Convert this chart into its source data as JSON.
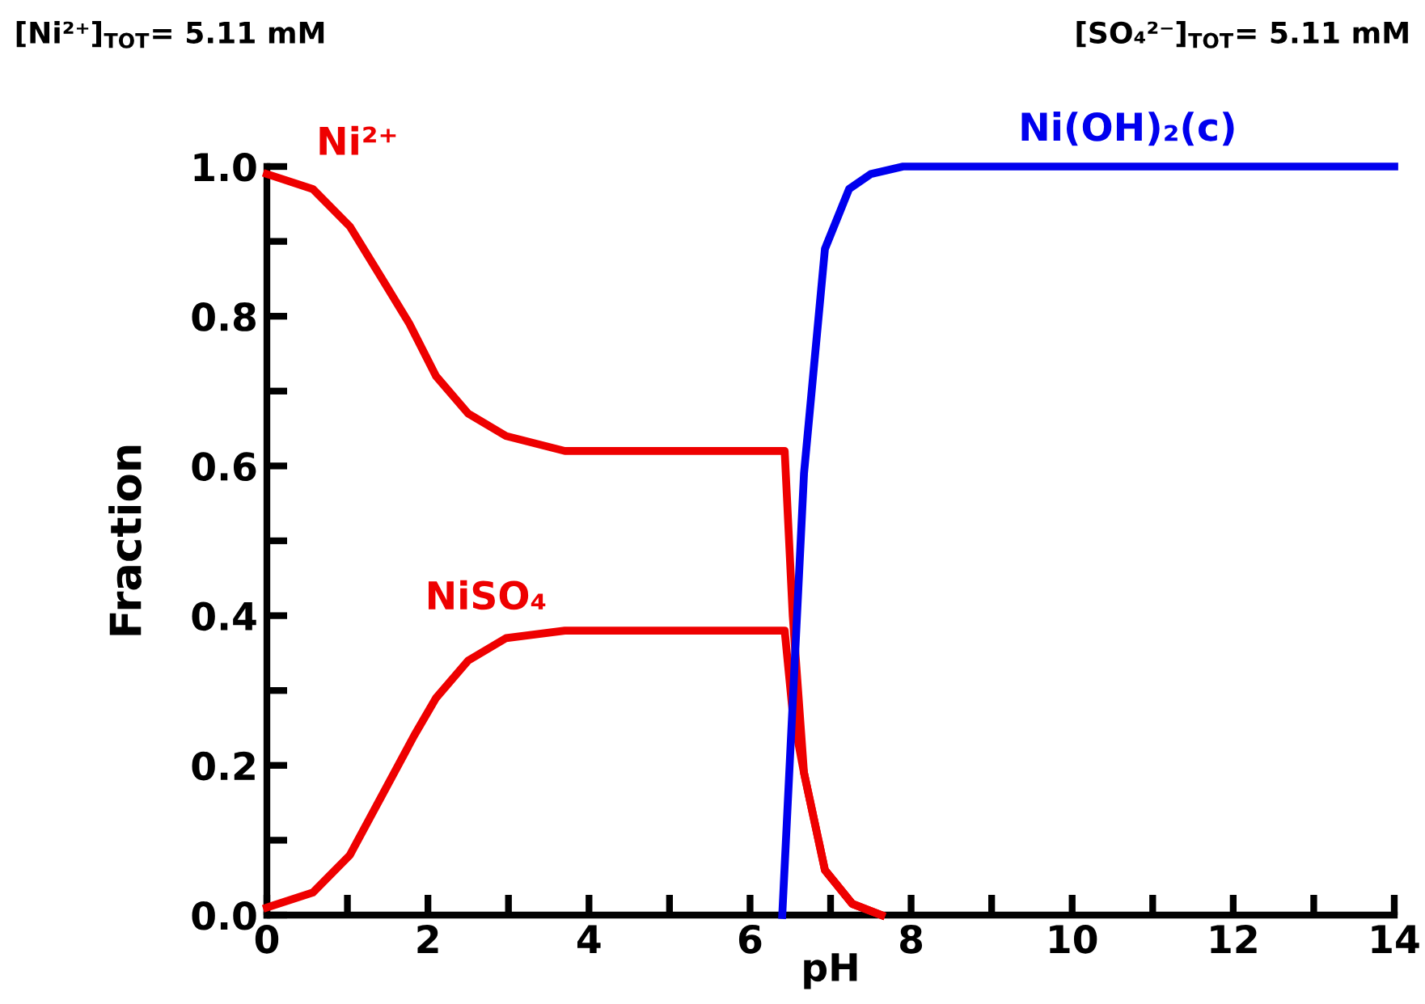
{
  "chart_data": {
    "type": "line",
    "xlabel": "pH",
    "ylabel": "Fraction",
    "annotations": [
      "[Ni²⁺]$_{TOT}$= 5.11 mM",
      "[SO₄²⁻]$_{TOT}$= 5.11 mM"
    ],
    "series": [
      {
        "name": "Ni²⁺",
        "color": "#ee0000",
        "x": [
          0,
          0.57,
          1.03,
          1.43,
          1.77,
          2.1,
          2.5,
          2.97,
          3.7,
          6.37,
          6.43,
          6.53,
          6.67,
          6.93,
          7.27,
          7.63
        ],
        "values": [
          0.99,
          0.97,
          0.92,
          0.85,
          0.79,
          0.72,
          0.67,
          0.64,
          0.62,
          0.62,
          0.62,
          0.4,
          0.19,
          0.06,
          0.015,
          0
        ]
      },
      {
        "name": "NiSO₄",
        "color": "#ee0000",
        "x": [
          0,
          0.57,
          1.03,
          1.43,
          1.83,
          2.1,
          2.5,
          2.97,
          3.7,
          6.37,
          6.43,
          6.53,
          6.67,
          6.93,
          7.27,
          7.63
        ],
        "values": [
          0.01,
          0.03,
          0.08,
          0.16,
          0.24,
          0.29,
          0.34,
          0.37,
          0.38,
          0.38,
          0.38,
          0.27,
          0.19,
          0.06,
          0.015,
          0
        ]
      },
      {
        "name": "Ni(OH)₂(c)",
        "color": "#0000ee",
        "x": [
          6.4,
          6.67,
          6.93,
          7.23,
          7.5,
          7.9,
          10,
          14
        ],
        "values": [
          0,
          0.59,
          0.89,
          0.97,
          0.99,
          1.0,
          1.0,
          1.0
        ]
      }
    ],
    "xlim": [
      0,
      14
    ],
    "ylim": [
      0,
      1.0
    ],
    "xticks": [
      0,
      {
        "value": 1,
        "label": null
      },
      2,
      {
        "value": 3,
        "label": null
      },
      4,
      {
        "value": 5,
        "label": null
      },
      6,
      {
        "value": 7,
        "label": null
      },
      8,
      {
        "value": 9,
        "label": null
      },
      10,
      {
        "value": 11,
        "label": null
      },
      12,
      {
        "value": 13,
        "label": null
      },
      14
    ],
    "yticks": [
      {
        "value": 0,
        "label": "0.0"
      },
      {
        "value": 0.1,
        "label": null
      },
      0.2,
      {
        "value": 0.3,
        "label": null
      },
      0.4,
      {
        "value": 0.5,
        "label": null
      },
      0.6,
      {
        "value": 0.7,
        "label": null
      },
      0.8,
      {
        "value": 0.9,
        "label": null
      },
      {
        "value": 1.0,
        "label": "1.0"
      }
    ],
    "grid": false,
    "legend": false,
    "marker": "none",
    "line_style": "solid"
  }
}
